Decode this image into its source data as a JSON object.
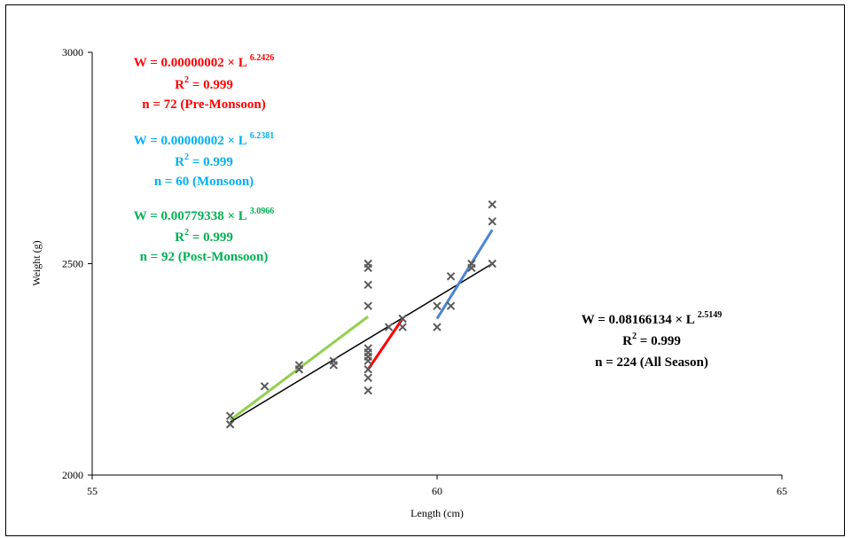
{
  "chart_data": {
    "type": "scatter",
    "xlabel": "Length  (cm)",
    "ylabel": "Weight (g)",
    "xlim": [
      55,
      65
    ],
    "ylim": [
      2000,
      3000
    ],
    "xticks": [
      "55",
      "60",
      "65"
    ],
    "yticks": [
      "2000",
      "2500",
      "3000"
    ],
    "grid": false,
    "colors": {
      "points": "#595959",
      "pre": "#ff0000",
      "monsoon": "#00b0f0",
      "post": "#00b050",
      "all": "#000000",
      "line_monsoon": "#4a86d4",
      "line_post": "#92d050"
    },
    "points": [
      [
        57,
        2120
      ],
      [
        57,
        2140
      ],
      [
        57.5,
        2210
      ],
      [
        58,
        2250
      ],
      [
        58,
        2260
      ],
      [
        58.5,
        2260
      ],
      [
        58.5,
        2270
      ],
      [
        59,
        2200
      ],
      [
        59,
        2230
      ],
      [
        59,
        2250
      ],
      [
        59,
        2270
      ],
      [
        59,
        2280
      ],
      [
        59,
        2290
      ],
      [
        59,
        2300
      ],
      [
        59,
        2400
      ],
      [
        59,
        2450
      ],
      [
        59,
        2490
      ],
      [
        59,
        2500
      ],
      [
        59.3,
        2350
      ],
      [
        59.5,
        2350
      ],
      [
        59.5,
        2370
      ],
      [
        60,
        2350
      ],
      [
        60,
        2400
      ],
      [
        60.2,
        2400
      ],
      [
        60.2,
        2470
      ],
      [
        60.5,
        2490
      ],
      [
        60.5,
        2500
      ],
      [
        60.8,
        2500
      ],
      [
        60.8,
        2600
      ],
      [
        60.8,
        2640
      ]
    ],
    "fits": [
      {
        "name": "pre",
        "x": [
          59,
          59.5
        ],
        "y": [
          2250,
          2370
        ]
      },
      {
        "name": "monsoon",
        "x": [
          60,
          60.8
        ],
        "y": [
          2370,
          2580
        ]
      },
      {
        "name": "post",
        "x": [
          57,
          59
        ],
        "y": [
          2130,
          2375
        ]
      },
      {
        "name": "all",
        "x": [
          57,
          60.8
        ],
        "y": [
          2125,
          2500
        ]
      }
    ],
    "annotations": [
      {
        "key": "pre",
        "lines": [
          {
            "text": "W = 0.00000002 × L ",
            "sup": "6.2426"
          },
          {
            "text": "R",
            "sup": "2",
            "after": " = 0.999"
          },
          {
            "text": "n = 72 (Pre-Monsoon)"
          }
        ]
      },
      {
        "key": "monsoon",
        "lines": [
          {
            "text": "W = 0.00000002 × L ",
            "sup": "6.2381"
          },
          {
            "text": "R",
            "sup": "2",
            "after": " = 0.999"
          },
          {
            "text": "n = 60 (Monsoon)"
          }
        ]
      },
      {
        "key": "post",
        "lines": [
          {
            "text": "W = 0.00779338 × L ",
            "sup": "3.0966"
          },
          {
            "text": "R",
            "sup": "2",
            "after": " = 0.999"
          },
          {
            "text": "n = 92 (Post-Monsoon)"
          }
        ]
      },
      {
        "key": "all",
        "lines": [
          {
            "text": "W = 0.08166134 × L ",
            "sup": "2.5149"
          },
          {
            "text": "R",
            "sup": "2",
            "after": " = 0.999"
          },
          {
            "text": "n = 224 (All Season)"
          }
        ]
      }
    ]
  }
}
